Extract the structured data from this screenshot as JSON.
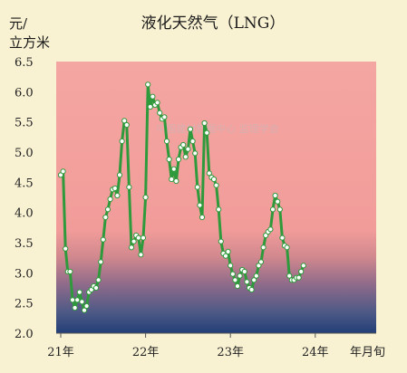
{
  "chart_data": {
    "type": "line",
    "title": "液化天然气（LNG）",
    "ylabel_line1": "元/",
    "ylabel_line2": "立方米",
    "xlabel": "年月旬",
    "ylim": [
      2.0,
      6.5
    ],
    "yticks": [
      "2.0",
      "2.5",
      "3.0",
      "3.5",
      "4.0",
      "4.5",
      "5.0",
      "5.5",
      "6.0",
      "6.5"
    ],
    "xticks": [
      "21年",
      "22年",
      "23年",
      "24年"
    ],
    "watermark": "中国建材数据中心 监理学会",
    "colors": {
      "line": "#2f9a3c",
      "marker_fill": "#ffffff",
      "bg_top": "#f4a3a0",
      "bg_bottom": "#2a4a7a",
      "page": "#f8f1d2"
    },
    "series": [
      {
        "values": [
          4.62,
          4.68,
          3.4,
          3.02,
          3.02,
          2.55,
          2.42,
          2.55,
          2.68,
          2.52,
          2.38,
          2.45,
          2.68,
          2.72,
          2.78,
          2.75,
          2.88,
          3.18,
          3.55,
          3.92,
          4.05,
          4.22,
          4.38,
          4.4,
          4.28,
          4.62,
          5.18,
          5.52,
          5.45,
          4.42,
          3.42,
          3.52,
          3.62,
          3.58,
          3.3,
          3.58,
          4.25,
          6.12,
          5.75,
          5.92,
          5.78,
          5.82,
          5.65,
          5.55,
          5.58,
          5.18,
          4.88,
          4.55,
          4.72,
          4.52,
          4.88,
          5.08,
          5.12,
          4.92,
          5.05,
          5.38,
          5.18,
          4.98,
          4.42,
          4.12,
          3.92,
          5.48,
          5.32,
          4.65,
          4.58,
          4.55,
          4.45,
          4.05,
          3.52,
          3.32,
          3.28,
          3.35,
          3.12,
          2.98,
          2.88,
          2.78,
          2.95,
          3.05,
          3.02,
          2.85,
          2.75,
          2.72,
          2.88,
          2.95,
          3.12,
          3.18,
          3.42,
          3.62,
          3.68,
          3.72,
          4.05,
          4.28,
          4.18,
          4.05,
          3.58,
          3.45,
          3.42,
          2.95,
          2.88,
          2.88,
          2.92,
          2.92,
          3.02,
          3.12
        ]
      }
    ]
  }
}
